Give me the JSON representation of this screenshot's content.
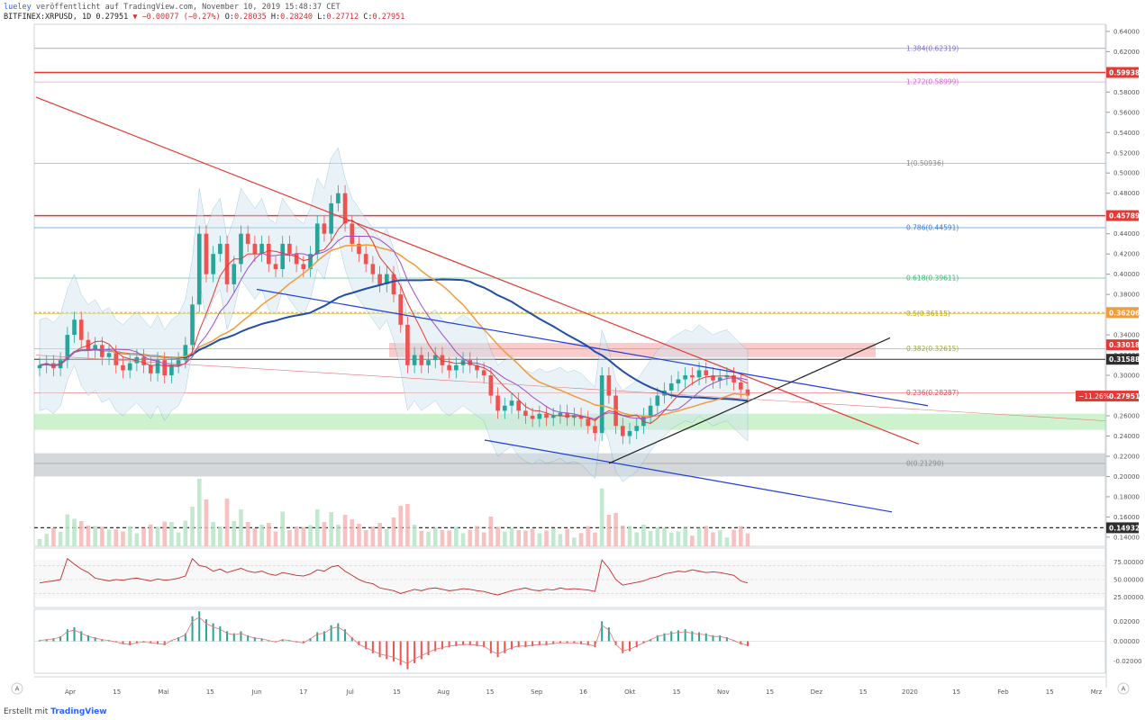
{
  "header": {
    "author": "lueley",
    "published": "veröffentlicht auf TradingView.com, November 10, 2019 15:48:37 CET",
    "symbol": "BITFINEX:XRPUSD, 1D",
    "last": "0.27951",
    "change": "−0.00077 (−0.27%)",
    "o_label": "O:",
    "o": "0.28035",
    "h_label": "H:",
    "h": "0.28240",
    "l_label": "L:",
    "l": "0.27712",
    "c_label": "C:",
    "c": "0.27951"
  },
  "footer": {
    "prefix": "Erstellt mit",
    "brand": "TradingView"
  },
  "corner": {
    "a1": "A",
    "a2": "A"
  },
  "colors": {
    "up": "#26a69a",
    "down": "#ef5350",
    "red": "#e53935",
    "blue": "#1e3fd6",
    "navy": "#1f4fa6",
    "orange": "#f39a3b",
    "purple": "#9c4dcc",
    "green_zone": "#a5e8a5",
    "grey_zone": "#b0b8bc",
    "pink_zone": "#f4a0a0"
  },
  "chart_data": [
    {
      "type": "candlestick",
      "title": "",
      "y_ticks": [
        "0.64000",
        "0.62000",
        "0.60000",
        "0.58000",
        "0.56000",
        "0.54000",
        "0.52000",
        "0.50000",
        "0.48000",
        "0.46000",
        "0.44000",
        "0.42000",
        "0.40000",
        "0.38000",
        "0.36000",
        "0.34000",
        "0.32000",
        "0.30000",
        "0.28000",
        "0.26000",
        "0.24000",
        "0.22000",
        "0.20000",
        "0.18000",
        "0.16000",
        "0.14000"
      ],
      "y_range": [
        0.131,
        0.647
      ],
      "x_ticks": [
        "Apr",
        "15",
        "Mai",
        "15",
        "Jun",
        "17",
        "Jul",
        "15",
        "Aug",
        "15",
        "Sep",
        "16",
        "Okt",
        "15",
        "Nov",
        "15",
        "Dez",
        "15",
        "2020",
        "15",
        "Feb",
        "15",
        "Mrz"
      ],
      "close_series": [
        0.31,
        0.312,
        0.307,
        0.315,
        0.34,
        0.355,
        0.335,
        0.325,
        0.33,
        0.318,
        0.322,
        0.31,
        0.305,
        0.312,
        0.318,
        0.31,
        0.302,
        0.315,
        0.3,
        0.31,
        0.315,
        0.33,
        0.37,
        0.44,
        0.4,
        0.42,
        0.43,
        0.39,
        0.41,
        0.44,
        0.43,
        0.42,
        0.43,
        0.41,
        0.405,
        0.43,
        0.42,
        0.41,
        0.405,
        0.42,
        0.45,
        0.44,
        0.47,
        0.48,
        0.45,
        0.43,
        0.42,
        0.41,
        0.4,
        0.39,
        0.4,
        0.38,
        0.35,
        0.31,
        0.32,
        0.31,
        0.315,
        0.32,
        0.31,
        0.305,
        0.31,
        0.315,
        0.31,
        0.305,
        0.3,
        0.28,
        0.265,
        0.27,
        0.275,
        0.265,
        0.26,
        0.257,
        0.262,
        0.258,
        0.26,
        0.263,
        0.258,
        0.26,
        0.257,
        0.25,
        0.243,
        0.3,
        0.28,
        0.25,
        0.24,
        0.245,
        0.25,
        0.26,
        0.27,
        0.28,
        0.285,
        0.292,
        0.296,
        0.3,
        0.298,
        0.305,
        0.3,
        0.295,
        0.298,
        0.3,
        0.293,
        0.286,
        0.28
      ],
      "fib_levels": [
        {
          "label": "1.384(0.62319)",
          "value": 0.62319,
          "color": "#7a6fd8"
        },
        {
          "label": "1.272(0.58999)",
          "value": 0.58999,
          "color": "#d95ed9"
        },
        {
          "label": "1(0.50936)",
          "value": 0.50936,
          "color": "#888888"
        },
        {
          "label": "0.786(0.44591)",
          "value": 0.44591,
          "color": "#3a7bd5"
        },
        {
          "label": "0.618(0.39611)",
          "value": 0.39611,
          "color": "#3cb371"
        },
        {
          "label": "0.5(0.36115)",
          "value": 0.36115,
          "color": "#c9a400"
        },
        {
          "label": "0.382(0.32615)",
          "value": 0.32615,
          "color": "#9aaf3c"
        },
        {
          "label": "0.236(0.28287)",
          "value": 0.28287,
          "color": "#e05050"
        },
        {
          "label": "0(0.21290)",
          "value": 0.2129,
          "color": "#888888"
        }
      ],
      "price_tags": [
        {
          "label": "0.59938",
          "value": 0.59938,
          "color": "#e53935"
        },
        {
          "label": "0.45789",
          "value": 0.45789,
          "color": "#e53935"
        },
        {
          "label": "0.36206",
          "value": 0.36206,
          "color": "#f39a3b"
        },
        {
          "label": "0.33018",
          "value": 0.33018,
          "color": "#e53935"
        },
        {
          "label": "0.31588",
          "value": 0.31588,
          "color": "#2e2e2e"
        },
        {
          "label": "0.27951",
          "value": 0.27951,
          "color": "#e53935"
        },
        {
          "label": "0.14932",
          "value": 0.14932,
          "color": "#2e2e2e"
        }
      ],
      "current_change_label": "−11.26%",
      "zones": [
        {
          "name": "resistance",
          "from": 0.318,
          "to": 0.332,
          "color": "#f4a0a0"
        },
        {
          "name": "support",
          "from": 0.246,
          "to": 0.262,
          "color": "#a5e8a5"
        },
        {
          "name": "bottom",
          "from": 0.2,
          "to": 0.223,
          "color": "#b0b8bc"
        }
      ]
    },
    {
      "type": "line",
      "title": "",
      "y_ticks": [
        "75.00000",
        "50.00000",
        "25.00000"
      ],
      "y_range": [
        10,
        95
      ],
      "values": [
        45,
        47,
        48,
        50,
        80,
        72,
        65,
        60,
        52,
        50,
        48,
        50,
        49,
        51,
        52,
        50,
        48,
        51,
        49,
        50,
        52,
        55,
        80,
        70,
        68,
        62,
        65,
        60,
        63,
        66,
        62,
        60,
        62,
        58,
        56,
        60,
        58,
        56,
        55,
        58,
        64,
        62,
        68,
        70,
        62,
        56,
        50,
        46,
        44,
        38,
        36,
        34,
        30,
        33,
        36,
        34,
        37,
        38,
        36,
        34,
        35,
        37,
        36,
        34,
        33,
        30,
        28,
        31,
        34,
        36,
        38,
        35,
        34,
        36,
        35,
        38,
        36,
        37,
        36,
        35,
        33,
        78,
        66,
        50,
        42,
        44,
        46,
        48,
        52,
        54,
        58,
        60,
        62,
        61,
        64,
        62,
        60,
        61,
        60,
        58,
        56,
        48,
        45
      ]
    },
    {
      "type": "bar",
      "title": "",
      "y_ticks": [
        "0.02000",
        "0.00000",
        "-0.02000"
      ],
      "y_range": [
        -0.032,
        0.032
      ],
      "values": [
        0.001,
        0.002,
        0.003,
        0.005,
        0.012,
        0.014,
        0.01,
        0.006,
        0.004,
        0.002,
        0.001,
        -0.001,
        -0.003,
        -0.004,
        -0.002,
        -0.001,
        -0.002,
        -0.003,
        -0.004,
        0.001,
        0.004,
        0.008,
        0.025,
        0.03,
        0.022,
        0.018,
        0.015,
        0.01,
        0.008,
        0.01,
        0.006,
        0.004,
        0.003,
        0.001,
        -0.001,
        0.002,
        0.001,
        -0.001,
        -0.002,
        0.003,
        0.009,
        0.01,
        0.016,
        0.018,
        0.012,
        0.004,
        -0.004,
        -0.008,
        -0.012,
        -0.016,
        -0.018,
        -0.02,
        -0.024,
        -0.028,
        -0.022,
        -0.018,
        -0.014,
        -0.01,
        -0.008,
        -0.006,
        -0.005,
        -0.004,
        -0.004,
        -0.005,
        -0.006,
        -0.012,
        -0.016,
        -0.012,
        -0.008,
        -0.006,
        -0.006,
        -0.005,
        -0.004,
        -0.004,
        -0.003,
        -0.002,
        -0.002,
        -0.002,
        -0.003,
        -0.004,
        -0.006,
        0.02,
        0.014,
        -0.004,
        -0.012,
        -0.01,
        -0.006,
        -0.002,
        0.002,
        0.006,
        0.008,
        0.01,
        0.011,
        0.012,
        0.01,
        0.009,
        0.008,
        0.006,
        0.006,
        0.004,
        0.001,
        -0.003,
        -0.005
      ]
    }
  ]
}
